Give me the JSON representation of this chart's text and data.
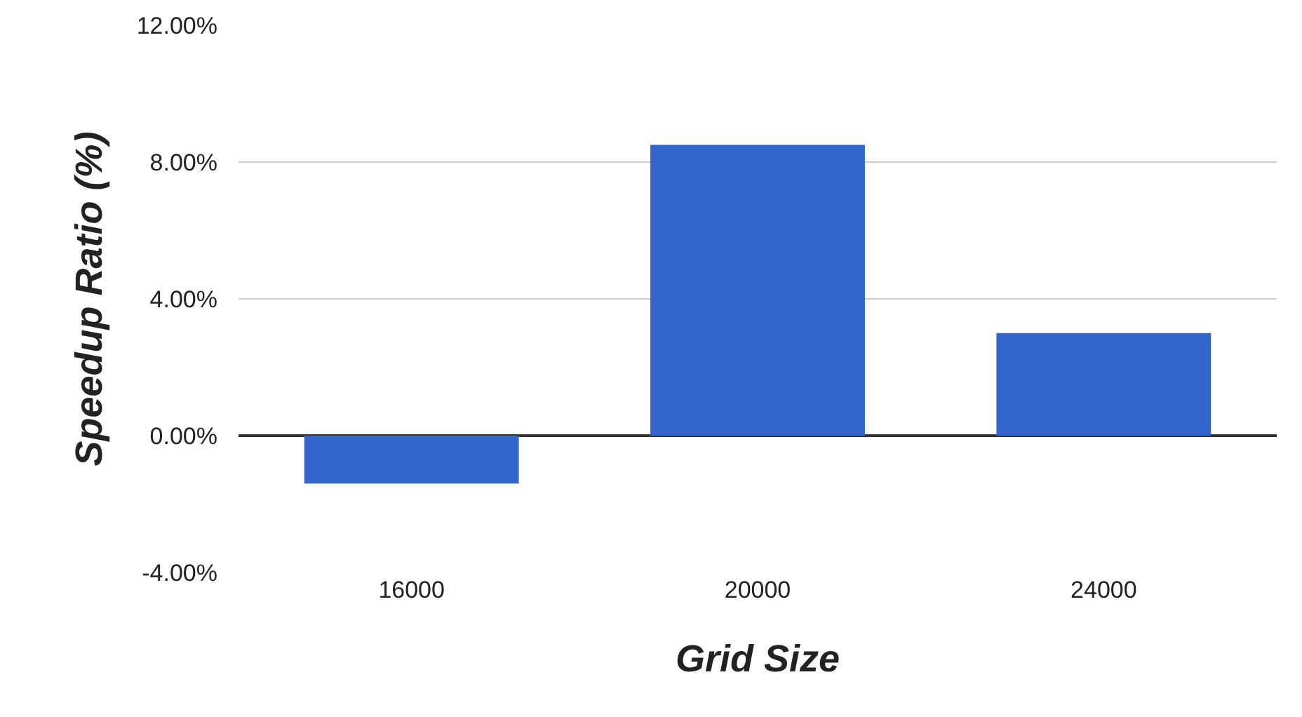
{
  "chart_data": {
    "type": "bar",
    "xlabel": "Grid Size",
    "ylabel": "Speedup Ratio (%)",
    "categories": [
      "16000",
      "20000",
      "24000"
    ],
    "values": [
      -1.4,
      8.5,
      3.0
    ],
    "color": "#3366cc",
    "ylim": [
      -4,
      12
    ],
    "yticks": [
      {
        "value": -4,
        "label": "-4.00%"
      },
      {
        "value": 0,
        "label": "0.00%"
      },
      {
        "value": 4,
        "label": "4.00%"
      },
      {
        "value": 8,
        "label": "8.00%"
      },
      {
        "value": 12,
        "label": "12.00%"
      }
    ],
    "grid": "y"
  }
}
